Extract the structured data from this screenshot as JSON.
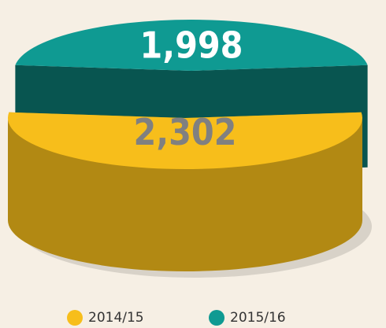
{
  "chart_data": {
    "type": "pie",
    "categories": [
      "2014/15",
      "2015/16"
    ],
    "values": [
      2302,
      1998
    ],
    "value_labels": [
      "2,302",
      "1,998"
    ],
    "colors": [
      "#f7be1b",
      "#0f9a92"
    ],
    "exploded": [
      false,
      true
    ]
  }
}
